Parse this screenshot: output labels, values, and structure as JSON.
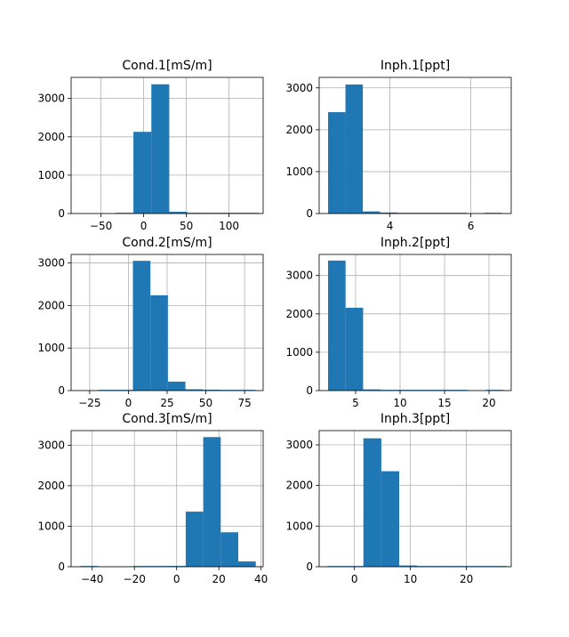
{
  "colors": {
    "bar": "#1f77b4",
    "grid": "#b0b0b0",
    "axis": "#000000"
  },
  "chart_data": [
    {
      "type": "bar",
      "title": "Cond.1[mS/m]",
      "grid": true,
      "xlim": [
        -85,
        140
      ],
      "ylim": [
        0,
        3550
      ],
      "xticks": [
        -50,
        0,
        50,
        100
      ],
      "xtick_labels": [
        "−50",
        "0",
        "50",
        "100"
      ],
      "yticks": [
        0,
        1000,
        2000,
        3000
      ],
      "ytick_labels": [
        "0",
        "1000",
        "2000",
        "3000"
      ],
      "bins": [
        {
          "x0": -75,
          "x1": -54,
          "count": 0
        },
        {
          "x0": -54,
          "x1": -33,
          "count": 0
        },
        {
          "x0": -33,
          "x1": -12,
          "count": 2
        },
        {
          "x0": -12,
          "x1": 9,
          "count": 2130
        },
        {
          "x0": 9,
          "x1": 30,
          "count": 3370
        },
        {
          "x0": 30,
          "x1": 51,
          "count": 45
        },
        {
          "x0": 51,
          "x1": 72,
          "count": 20
        },
        {
          "x0": 72,
          "x1": 93,
          "count": 4
        },
        {
          "x0": 93,
          "x1": 114,
          "count": 2
        },
        {
          "x0": 114,
          "x1": 135,
          "count": 1
        }
      ]
    },
    {
      "type": "bar",
      "title": "Inph.1[ppt]",
      "grid": true,
      "xlim": [
        2.25,
        7.0
      ],
      "ylim": [
        0,
        3250
      ],
      "xticks": [
        4,
        6
      ],
      "xtick_labels": [
        "4",
        "6"
      ],
      "yticks": [
        0,
        1000,
        2000,
        3000
      ],
      "ytick_labels": [
        "0",
        "1000",
        "2000",
        "3000"
      ],
      "bins": [
        {
          "x0": 2.47,
          "x1": 2.9,
          "count": 2420
        },
        {
          "x0": 2.9,
          "x1": 3.33,
          "count": 3080
        },
        {
          "x0": 3.33,
          "x1": 3.76,
          "count": 50
        },
        {
          "x0": 3.76,
          "x1": 4.19,
          "count": 25
        },
        {
          "x0": 4.19,
          "x1": 4.62,
          "count": 5
        },
        {
          "x0": 4.62,
          "x1": 5.05,
          "count": 2
        },
        {
          "x0": 5.05,
          "x1": 5.48,
          "count": 1
        },
        {
          "x0": 5.48,
          "x1": 5.91,
          "count": 1
        },
        {
          "x0": 5.91,
          "x1": 6.34,
          "count": 0
        },
        {
          "x0": 6.34,
          "x1": 6.77,
          "count": 1
        }
      ]
    },
    {
      "type": "bar",
      "title": "Cond.2[mS/m]",
      "grid": true,
      "xlim": [
        -37,
        87
      ],
      "ylim": [
        0,
        3200
      ],
      "xticks": [
        -25,
        0,
        25,
        50,
        75
      ],
      "xtick_labels": [
        "−25",
        "0",
        "25",
        "50",
        "75"
      ],
      "yticks": [
        0,
        1000,
        2000,
        3000
      ],
      "ytick_labels": [
        "0",
        "1000",
        "2000",
        "3000"
      ],
      "bins": [
        {
          "x0": -31,
          "x1": -19.7,
          "count": 0
        },
        {
          "x0": -19.7,
          "x1": -8.4,
          "count": 1
        },
        {
          "x0": -8.4,
          "x1": 2.9,
          "count": 10
        },
        {
          "x0": 2.9,
          "x1": 14.2,
          "count": 3050
        },
        {
          "x0": 14.2,
          "x1": 25.5,
          "count": 2240
        },
        {
          "x0": 25.5,
          "x1": 36.8,
          "count": 210
        },
        {
          "x0": 36.8,
          "x1": 48.1,
          "count": 30
        },
        {
          "x0": 48.1,
          "x1": 59.4,
          "count": 20
        },
        {
          "x0": 59.4,
          "x1": 70.7,
          "count": 3
        },
        {
          "x0": 70.7,
          "x1": 82,
          "count": 1
        }
      ]
    },
    {
      "type": "bar",
      "title": "Inph.2[ppt]",
      "grid": true,
      "xlim": [
        0.9,
        22.5
      ],
      "ylim": [
        0,
        3550
      ],
      "xticks": [
        5,
        10,
        15,
        20
      ],
      "xtick_labels": [
        "5",
        "10",
        "15",
        "20"
      ],
      "yticks": [
        0,
        1000,
        2000,
        3000
      ],
      "ytick_labels": [
        "0",
        "1000",
        "2000",
        "3000"
      ],
      "bins": [
        {
          "x0": 1.9,
          "x1": 3.87,
          "count": 3390
        },
        {
          "x0": 3.87,
          "x1": 5.84,
          "count": 2160
        },
        {
          "x0": 5.84,
          "x1": 7.81,
          "count": 30
        },
        {
          "x0": 7.81,
          "x1": 9.78,
          "count": 8
        },
        {
          "x0": 9.78,
          "x1": 11.75,
          "count": 3
        },
        {
          "x0": 11.75,
          "x1": 13.72,
          "count": 2
        },
        {
          "x0": 13.72,
          "x1": 15.69,
          "count": 1
        },
        {
          "x0": 15.69,
          "x1": 17.66,
          "count": 1
        },
        {
          "x0": 17.66,
          "x1": 19.63,
          "count": 0
        },
        {
          "x0": 19.63,
          "x1": 21.6,
          "count": 1
        }
      ]
    },
    {
      "type": "bar",
      "title": "Cond.3[mS/m]",
      "grid": true,
      "xlim": [
        -50,
        41
      ],
      "ylim": [
        0,
        3360
      ],
      "xticks": [
        -40,
        -20,
        0,
        20,
        40
      ],
      "xtick_labels": [
        "−40",
        "−20",
        "0",
        "20",
        "40"
      ],
      "yticks": [
        0,
        1000,
        2000,
        3000
      ],
      "ytick_labels": [
        "0",
        "1000",
        "2000",
        "3000"
      ],
      "bins": [
        {
          "x0": -45.5,
          "x1": -37.2,
          "count": 1
        },
        {
          "x0": -37.2,
          "x1": -28.9,
          "count": 0
        },
        {
          "x0": -28.9,
          "x1": -20.6,
          "count": 0
        },
        {
          "x0": -20.6,
          "x1": -12.3,
          "count": 1
        },
        {
          "x0": -12.3,
          "x1": -4.0,
          "count": 5
        },
        {
          "x0": -4.0,
          "x1": 4.3,
          "count": 20
        },
        {
          "x0": 4.3,
          "x1": 12.6,
          "count": 1360
        },
        {
          "x0": 12.6,
          "x1": 20.9,
          "count": 3200
        },
        {
          "x0": 20.9,
          "x1": 29.2,
          "count": 850
        },
        {
          "x0": 29.2,
          "x1": 37.5,
          "count": 130
        }
      ]
    },
    {
      "type": "bar",
      "title": "Inph.3[ppt]",
      "grid": true,
      "xlim": [
        -6.3,
        28
      ],
      "ylim": [
        0,
        3350
      ],
      "xticks": [
        0,
        10,
        20
      ],
      "xtick_labels": [
        "0",
        "10",
        "20"
      ],
      "yticks": [
        0,
        1000,
        2000,
        3000
      ],
      "ytick_labels": [
        "0",
        "1000",
        "2000",
        "3000"
      ],
      "bins": [
        {
          "x0": -4.8,
          "x1": -1.6,
          "count": 1
        },
        {
          "x0": -1.6,
          "x1": 1.6,
          "count": 10
        },
        {
          "x0": 1.6,
          "x1": 4.8,
          "count": 3160
        },
        {
          "x0": 4.8,
          "x1": 8.0,
          "count": 2350
        },
        {
          "x0": 8.0,
          "x1": 11.2,
          "count": 30
        },
        {
          "x0": 11.2,
          "x1": 14.4,
          "count": 5
        },
        {
          "x0": 14.4,
          "x1": 17.6,
          "count": 2
        },
        {
          "x0": 17.6,
          "x1": 20.8,
          "count": 1
        },
        {
          "x0": 20.8,
          "x1": 24.0,
          "count": 1
        },
        {
          "x0": 24.0,
          "x1": 27.2,
          "count": 1
        }
      ]
    }
  ]
}
